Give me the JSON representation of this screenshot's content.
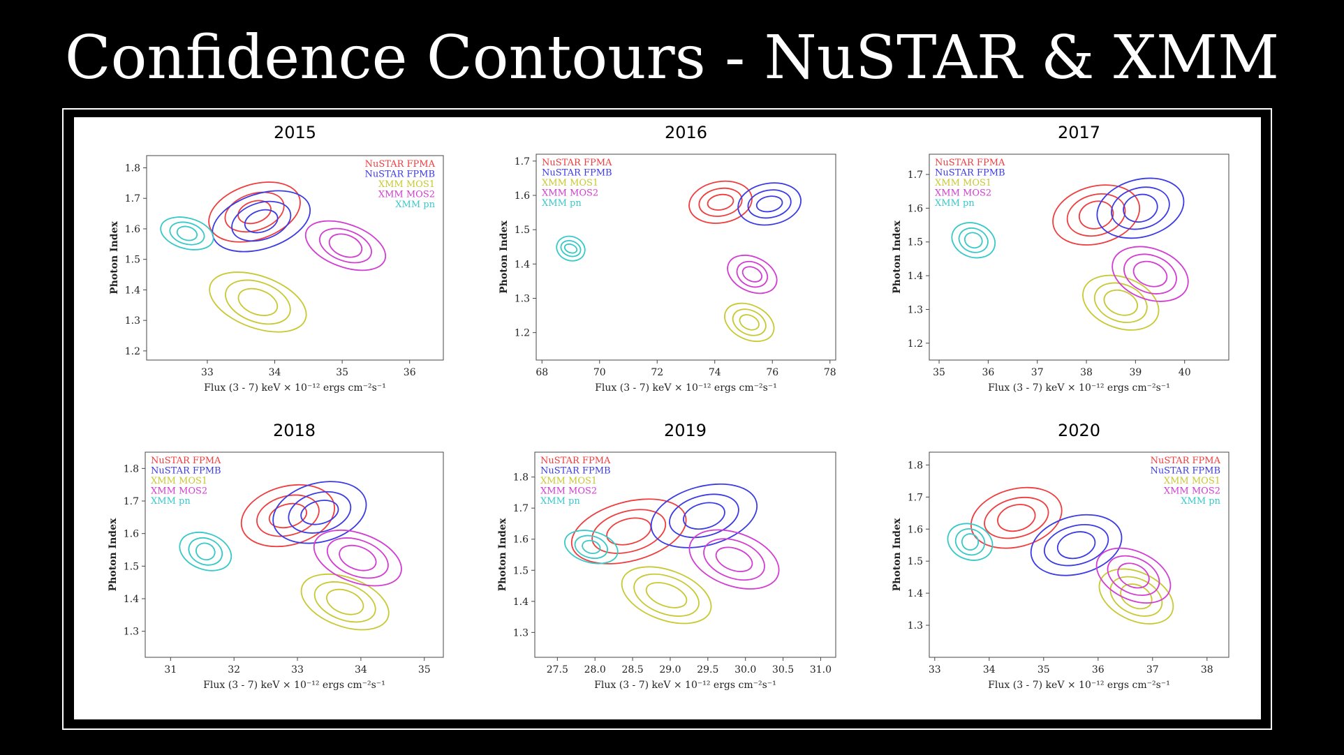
{
  "slide": {
    "title": "Confidence Contours - NuSTAR & XMM"
  },
  "colors": {
    "NuSTAR FPMA": "#f03c3c",
    "NuSTAR FPMB": "#3a3ae6",
    "XMM MOS1": "#c8c832",
    "XMM MOS2": "#d23cd2",
    "XMM pn": "#37c8c8"
  },
  "chart_data": [
    {
      "type": "scatter",
      "title": "2015",
      "xlabel": "Flux (3 - 7) keV × 10⁻¹² ergs cm⁻²s⁻¹",
      "ylabel": "Photon Index",
      "xlim": [
        32.1,
        36.5
      ],
      "ylim": [
        1.17,
        1.84
      ],
      "xticks": [
        "33",
        "34",
        "35",
        "36"
      ],
      "yticks": [
        "1.2",
        "1.3",
        "1.4",
        "1.5",
        "1.6",
        "1.7",
        "1.8"
      ],
      "legend": "top-right",
      "series": [
        {
          "name": "NuSTAR FPMA",
          "center": [
            33.7,
            1.655
          ],
          "semi_x": [
            0.25,
            0.45,
            0.7
          ],
          "semi_y": [
            0.035,
            0.06,
            0.09
          ],
          "rotation_deg": 18
        },
        {
          "name": "NuSTAR FPMB",
          "center": [
            33.8,
            1.625
          ],
          "semi_x": [
            0.25,
            0.45,
            0.75
          ],
          "semi_y": [
            0.035,
            0.06,
            0.09
          ],
          "rotation_deg": 18
        },
        {
          "name": "XMM MOS1",
          "center": [
            33.75,
            1.36
          ],
          "semi_x": [
            0.3,
            0.5,
            0.75
          ],
          "semi_y": [
            0.04,
            0.065,
            0.085
          ],
          "rotation_deg": -20
        },
        {
          "name": "XMM MOS2",
          "center": [
            35.05,
            1.545
          ],
          "semi_x": [
            0.25,
            0.4,
            0.62
          ],
          "semi_y": [
            0.035,
            0.05,
            0.07
          ],
          "rotation_deg": -20
        },
        {
          "name": "XMM pn",
          "center": [
            32.7,
            1.585
          ],
          "semi_x": [
            0.15,
            0.26,
            0.4
          ],
          "semi_y": [
            0.022,
            0.035,
            0.05
          ],
          "rotation_deg": -15
        }
      ]
    },
    {
      "type": "scatter",
      "title": "2016",
      "xlabel": "Flux (3 - 7) keV × 10⁻¹² ergs cm⁻²s⁻¹",
      "ylabel": "Photon Index",
      "xlim": [
        67.8,
        78.2
      ],
      "ylim": [
        1.12,
        1.72
      ],
      "xticks": [
        "68",
        "70",
        "72",
        "74",
        "76",
        "78"
      ],
      "yticks": [
        "1.2",
        "1.3",
        "1.4",
        "1.5",
        "1.6",
        "1.7"
      ],
      "legend": "top-left",
      "series": [
        {
          "name": "NuSTAR FPMA",
          "center": [
            74.2,
            1.58
          ],
          "semi_x": [
            0.45,
            0.75,
            1.1
          ],
          "semi_y": [
            0.022,
            0.04,
            0.06
          ],
          "rotation_deg": 10
        },
        {
          "name": "NuSTAR FPMB",
          "center": [
            75.9,
            1.575
          ],
          "semi_x": [
            0.45,
            0.75,
            1.1
          ],
          "semi_y": [
            0.022,
            0.04,
            0.06
          ],
          "rotation_deg": 10
        },
        {
          "name": "XMM MOS1",
          "center": [
            75.2,
            1.23
          ],
          "semi_x": [
            0.35,
            0.6,
            0.9
          ],
          "semi_y": [
            0.02,
            0.035,
            0.05
          ],
          "rotation_deg": -25
        },
        {
          "name": "XMM MOS2",
          "center": [
            75.3,
            1.37
          ],
          "semi_x": [
            0.35,
            0.55,
            0.9
          ],
          "semi_y": [
            0.02,
            0.035,
            0.05
          ],
          "rotation_deg": -25
        },
        {
          "name": "XMM pn",
          "center": [
            69.0,
            1.445
          ],
          "semi_x": [
            0.22,
            0.35,
            0.5
          ],
          "semi_y": [
            0.012,
            0.022,
            0.035
          ],
          "rotation_deg": -20
        }
      ]
    },
    {
      "type": "scatter",
      "title": "2017",
      "xlabel": "Flux (3 - 7) keV × 10⁻¹² ergs cm⁻²s⁻¹",
      "ylabel": "Photon Index",
      "xlim": [
        34.8,
        40.9
      ],
      "ylim": [
        1.15,
        1.76
      ],
      "xticks": [
        "35",
        "36",
        "37",
        "38",
        "39",
        "40"
      ],
      "yticks": [
        "1.2",
        "1.3",
        "1.4",
        "1.5",
        "1.6",
        "1.7"
      ],
      "legend": "top-left",
      "series": [
        {
          "name": "NuSTAR FPMA",
          "center": [
            38.2,
            1.58
          ],
          "semi_x": [
            0.35,
            0.6,
            0.9
          ],
          "semi_y": [
            0.04,
            0.06,
            0.085
          ],
          "rotation_deg": 15
        },
        {
          "name": "NuSTAR FPMB",
          "center": [
            39.1,
            1.6
          ],
          "semi_x": [
            0.35,
            0.6,
            0.9
          ],
          "semi_y": [
            0.04,
            0.06,
            0.085
          ],
          "rotation_deg": 15
        },
        {
          "name": "XMM MOS1",
          "center": [
            38.7,
            1.32
          ],
          "semi_x": [
            0.35,
            0.55,
            0.8
          ],
          "semi_y": [
            0.035,
            0.055,
            0.075
          ],
          "rotation_deg": -20
        },
        {
          "name": "XMM MOS2",
          "center": [
            39.3,
            1.405
          ],
          "semi_x": [
            0.35,
            0.55,
            0.8
          ],
          "semi_y": [
            0.035,
            0.055,
            0.075
          ],
          "rotation_deg": -20
        },
        {
          "name": "XMM pn",
          "center": [
            35.7,
            1.505
          ],
          "semi_x": [
            0.18,
            0.3,
            0.45
          ],
          "semi_y": [
            0.022,
            0.035,
            0.05
          ],
          "rotation_deg": -20
        }
      ]
    },
    {
      "type": "scatter",
      "title": "2018",
      "xlabel": "Flux (3 - 7) keV × 10⁻¹² ergs cm⁻²s⁻¹",
      "ylabel": "Photon Index",
      "xlim": [
        30.6,
        35.3
      ],
      "ylim": [
        1.22,
        1.85
      ],
      "xticks": [
        "31",
        "32",
        "33",
        "34",
        "35"
      ],
      "yticks": [
        "1.3",
        "1.4",
        "1.5",
        "1.6",
        "1.7",
        "1.8"
      ],
      "legend": "top-left",
      "series": [
        {
          "name": "NuSTAR FPMA",
          "center": [
            32.85,
            1.655
          ],
          "semi_x": [
            0.3,
            0.5,
            0.75
          ],
          "semi_y": [
            0.035,
            0.06,
            0.09
          ],
          "rotation_deg": 15
        },
        {
          "name": "NuSTAR FPMB",
          "center": [
            33.35,
            1.665
          ],
          "semi_x": [
            0.3,
            0.5,
            0.75
          ],
          "semi_y": [
            0.035,
            0.06,
            0.09
          ],
          "rotation_deg": 15
        },
        {
          "name": "XMM MOS1",
          "center": [
            33.75,
            1.39
          ],
          "semi_x": [
            0.3,
            0.5,
            0.72
          ],
          "semi_y": [
            0.035,
            0.055,
            0.075
          ],
          "rotation_deg": -20
        },
        {
          "name": "XMM MOS2",
          "center": [
            33.95,
            1.525
          ],
          "semi_x": [
            0.3,
            0.5,
            0.72
          ],
          "semi_y": [
            0.035,
            0.055,
            0.075
          ],
          "rotation_deg": -20
        },
        {
          "name": "XMM pn",
          "center": [
            31.55,
            1.545
          ],
          "semi_x": [
            0.15,
            0.27,
            0.42
          ],
          "semi_y": [
            0.025,
            0.04,
            0.055
          ],
          "rotation_deg": -20
        }
      ]
    },
    {
      "type": "scatter",
      "title": "2019",
      "xlabel": "Flux (3 - 7) keV × 10⁻¹² ergs cm⁻²s⁻¹",
      "ylabel": "Photon Index",
      "xlim": [
        27.2,
        31.2
      ],
      "ylim": [
        1.22,
        1.88
      ],
      "xticks": [
        "27.5",
        "28.0",
        "28.5",
        "29.0",
        "29.5",
        "30.0",
        "30.5",
        "31.0"
      ],
      "yticks": [
        "1.3",
        "1.4",
        "1.5",
        "1.6",
        "1.7",
        "1.8"
      ],
      "legend": "top-left",
      "series": [
        {
          "name": "NuSTAR FPMA",
          "center": [
            28.45,
            1.625
          ],
          "semi_x": [
            0.3,
            0.5,
            0.78
          ],
          "semi_y": [
            0.04,
            0.065,
            0.095
          ],
          "rotation_deg": 15
        },
        {
          "name": "NuSTAR FPMB",
          "center": [
            29.45,
            1.675
          ],
          "semi_x": [
            0.28,
            0.47,
            0.72
          ],
          "semi_y": [
            0.04,
            0.065,
            0.095
          ],
          "rotation_deg": 15
        },
        {
          "name": "XMM MOS1",
          "center": [
            28.95,
            1.42
          ],
          "semi_x": [
            0.28,
            0.45,
            0.62
          ],
          "semi_y": [
            0.035,
            0.06,
            0.08
          ],
          "rotation_deg": -20
        },
        {
          "name": "XMM MOS2",
          "center": [
            29.85,
            1.535
          ],
          "semi_x": [
            0.25,
            0.42,
            0.62
          ],
          "semi_y": [
            0.035,
            0.06,
            0.085
          ],
          "rotation_deg": -20
        },
        {
          "name": "XMM pn",
          "center": [
            27.95,
            1.575
          ],
          "semi_x": [
            0.12,
            0.22,
            0.36
          ],
          "semi_y": [
            0.02,
            0.035,
            0.05
          ],
          "rotation_deg": -15
        }
      ]
    },
    {
      "type": "scatter",
      "title": "2020",
      "xlabel": "Flux (3 - 7) keV × 10⁻¹² ergs cm⁻²s⁻¹",
      "ylabel": "Photon Index",
      "xlim": [
        32.9,
        38.4
      ],
      "ylim": [
        1.2,
        1.84
      ],
      "xticks": [
        "33",
        "34",
        "35",
        "36",
        "37",
        "38"
      ],
      "yticks": [
        "1.3",
        "1.4",
        "1.5",
        "1.6",
        "1.7",
        "1.8"
      ],
      "legend": "top-right",
      "series": [
        {
          "name": "NuSTAR FPMA",
          "center": [
            34.5,
            1.635
          ],
          "semi_x": [
            0.35,
            0.6,
            0.85
          ],
          "semi_y": [
            0.04,
            0.06,
            0.09
          ],
          "rotation_deg": 15
        },
        {
          "name": "NuSTAR FPMB",
          "center": [
            35.6,
            1.55
          ],
          "semi_x": [
            0.35,
            0.6,
            0.85
          ],
          "semi_y": [
            0.04,
            0.06,
            0.09
          ],
          "rotation_deg": 15
        },
        {
          "name": "XMM MOS1",
          "center": [
            36.7,
            1.39
          ],
          "semi_x": [
            0.3,
            0.5,
            0.72
          ],
          "semi_y": [
            0.035,
            0.055,
            0.075
          ],
          "rotation_deg": -25
        },
        {
          "name": "XMM MOS2",
          "center": [
            36.65,
            1.455
          ],
          "semi_x": [
            0.3,
            0.5,
            0.72
          ],
          "semi_y": [
            0.035,
            0.055,
            0.075
          ],
          "rotation_deg": -25
        },
        {
          "name": "XMM pn",
          "center": [
            33.65,
            1.56
          ],
          "semi_x": [
            0.15,
            0.27,
            0.42
          ],
          "semi_y": [
            0.025,
            0.04,
            0.055
          ],
          "rotation_deg": -20
        }
      ]
    }
  ]
}
